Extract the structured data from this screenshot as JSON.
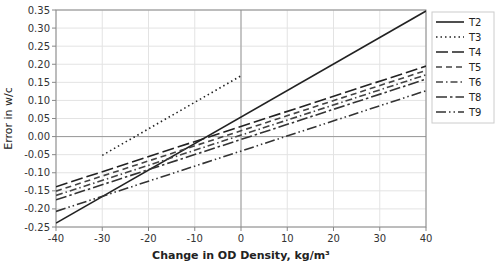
{
  "chart_data": {
    "type": "line",
    "xlabel": "Change in OD Density, kg/m³",
    "ylabel": "Error in w/c",
    "series": [
      {
        "name": "T2",
        "color": "#222222",
        "line_style": "solid",
        "x": [
          -40,
          40
        ],
        "values": [
          -0.2392,
          0.3472
        ]
      },
      {
        "name": "T3",
        "color": "#222222",
        "line_style": "dotted",
        "x": [
          -30,
          0
        ],
        "values": [
          -0.0519,
          0.168
        ]
      },
      {
        "name": "T4",
        "color": "#222222",
        "line_style": "long-dash",
        "x": [
          -40,
          40
        ],
        "values": [
          -0.1388,
          0.1948
        ]
      },
      {
        "name": "T5",
        "color": "#444444",
        "line_style": "dashed",
        "x": [
          -40,
          40
        ],
        "values": [
          -0.1508,
          0.1828
        ]
      },
      {
        "name": "T6",
        "color": "#444444",
        "line_style": "dash-dot",
        "x": [
          -40,
          40
        ],
        "values": [
          -0.1628,
          0.1708
        ]
      },
      {
        "name": "T8",
        "color": "#333333",
        "line_style": "long-dash-dot",
        "x": [
          -40,
          40
        ],
        "values": [
          -0.1748,
          0.1588
        ]
      },
      {
        "name": "T9",
        "color": "#333333",
        "line_style": "dash-dot-dot",
        "x": [
          -40,
          40
        ],
        "values": [
          -0.2068,
          0.1268
        ]
      }
    ],
    "xlim": [
      -40,
      40
    ],
    "xticks": [
      -40,
      -30,
      -20,
      -10,
      0,
      10,
      20,
      30,
      40
    ],
    "ylim": [
      -0.25,
      0.35
    ],
    "yticks": [
      -0.25,
      {
        "value": -0.2,
        "label": "-0.20"
      },
      -0.15,
      {
        "value": -0.1,
        "label": "-0.10"
      },
      -0.05,
      {
        "value": 0,
        "label": "0.00"
      },
      0.05,
      {
        "value": 0.1,
        "label": "0.10"
      },
      0.15,
      {
        "value": 0.2,
        "label": "0.20"
      },
      0.25,
      {
        "value": 0.3,
        "label": "0.30"
      },
      0.35
    ],
    "grid": true,
    "legend": "right"
  }
}
